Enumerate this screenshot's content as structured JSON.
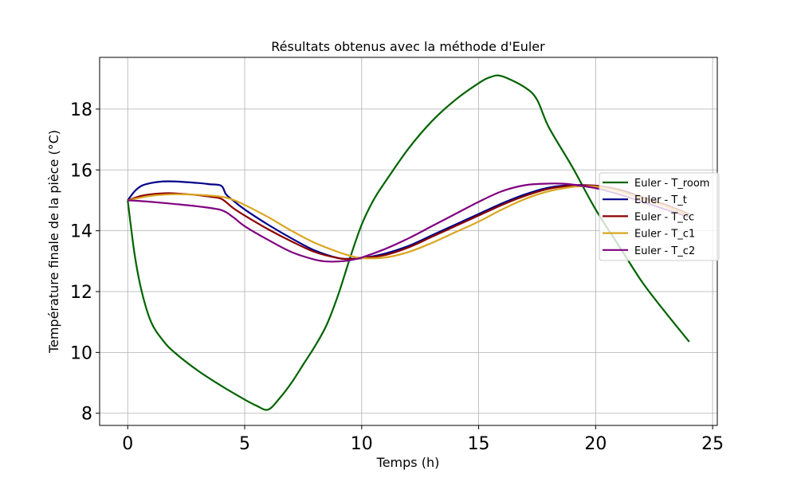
{
  "chart_data": {
    "type": "line",
    "title": "Résultats obtenus avec la méthode d'Euler",
    "xlabel": "Temps (h)",
    "ylabel": "Température finale de la pièce (°C)",
    "xlim": [
      -1.2,
      25.2
    ],
    "ylim": [
      7.6,
      19.7
    ],
    "xticks": [
      0,
      5,
      10,
      15,
      20,
      25
    ],
    "yticks": [
      8,
      10,
      12,
      14,
      16,
      18
    ],
    "grid": true,
    "legend_position": "center-right",
    "series": [
      {
        "name": "Euler - T_room",
        "color": "#006400",
        "x": [
          0,
          0.3,
          0.6,
          1,
          1.5,
          2,
          3,
          4,
          5,
          5.5,
          6,
          6.5,
          7,
          7.5,
          8,
          8.5,
          9,
          9.5,
          10,
          10.5,
          11,
          12,
          13,
          14,
          15,
          15.5,
          16,
          17,
          17.5,
          18,
          19,
          20,
          21,
          22,
          23,
          24
        ],
        "y": [
          15.0,
          13.2,
          12.0,
          11.0,
          10.4,
          10.0,
          9.4,
          8.9,
          8.45,
          8.25,
          8.12,
          8.5,
          9.0,
          9.6,
          10.2,
          10.9,
          11.9,
          13.1,
          14.2,
          15.0,
          15.6,
          16.7,
          17.6,
          18.3,
          18.85,
          19.05,
          19.08,
          18.7,
          18.3,
          17.4,
          16.1,
          14.7,
          13.5,
          12.3,
          11.3,
          10.35
        ]
      },
      {
        "name": "Euler - T_t",
        "color": "#00008B",
        "x": [
          0,
          0.3,
          0.6,
          1,
          1.5,
          2,
          3,
          3.5,
          4,
          4.2,
          4.5,
          5,
          6,
          7,
          8,
          9,
          9.5,
          10,
          11,
          12,
          13,
          14,
          15,
          16,
          17,
          18,
          19,
          20,
          21,
          22,
          23,
          24
        ],
        "y": [
          15.0,
          15.3,
          15.48,
          15.57,
          15.62,
          15.62,
          15.57,
          15.53,
          15.48,
          15.2,
          15.0,
          14.7,
          14.2,
          13.75,
          13.35,
          13.1,
          13.08,
          13.1,
          13.25,
          13.5,
          13.85,
          14.2,
          14.55,
          14.9,
          15.2,
          15.42,
          15.5,
          15.48,
          15.35,
          15.1,
          14.8,
          14.5
        ]
      },
      {
        "name": "Euler - T_cc",
        "color": "#8B0000",
        "x": [
          0,
          0.3,
          0.6,
          1,
          1.5,
          2,
          3,
          3.5,
          4,
          4.5,
          5,
          6,
          7,
          8,
          9,
          9.5,
          10,
          11,
          12,
          13,
          14,
          15,
          16,
          17,
          18,
          19,
          20,
          21,
          22,
          23,
          24
        ],
        "y": [
          15.0,
          15.08,
          15.15,
          15.2,
          15.23,
          15.23,
          15.17,
          15.12,
          15.05,
          14.75,
          14.5,
          14.05,
          13.65,
          13.3,
          13.1,
          13.07,
          13.1,
          13.2,
          13.45,
          13.8,
          14.15,
          14.5,
          14.85,
          15.15,
          15.38,
          15.48,
          15.48,
          15.35,
          15.1,
          14.85,
          14.55
        ]
      },
      {
        "name": "Euler - T_c1",
        "color": "#DAA520",
        "x": [
          0,
          0.5,
          1,
          2,
          3,
          4,
          4.5,
          5,
          6,
          7,
          8,
          9,
          9.5,
          10,
          11,
          12,
          13,
          14,
          15,
          16,
          17,
          18,
          19,
          19.5,
          20,
          21,
          22,
          23,
          24
        ],
        "y": [
          15.0,
          15.08,
          15.15,
          15.2,
          15.18,
          15.12,
          15.02,
          14.85,
          14.45,
          14.0,
          13.6,
          13.3,
          13.18,
          13.1,
          13.12,
          13.3,
          13.6,
          13.95,
          14.3,
          14.7,
          15.05,
          15.3,
          15.44,
          15.46,
          15.45,
          15.3,
          15.05,
          14.8,
          14.5
        ]
      },
      {
        "name": "Euler - T_c2",
        "color": "#800080",
        "x": [
          0,
          0.5,
          1,
          2,
          3,
          4,
          4.5,
          5,
          6,
          7,
          8,
          8.5,
          9,
          9.5,
          10,
          11,
          12,
          13,
          14,
          15,
          16,
          17,
          18,
          18.5,
          19,
          20,
          21,
          22,
          23,
          24
        ],
        "y": [
          15.0,
          14.98,
          14.95,
          14.88,
          14.8,
          14.68,
          14.45,
          14.15,
          13.7,
          13.3,
          13.05,
          12.99,
          12.99,
          13.03,
          13.12,
          13.4,
          13.75,
          14.15,
          14.55,
          14.95,
          15.3,
          15.5,
          15.55,
          15.55,
          15.52,
          15.4,
          15.2,
          14.95,
          14.7,
          14.45
        ]
      }
    ]
  }
}
